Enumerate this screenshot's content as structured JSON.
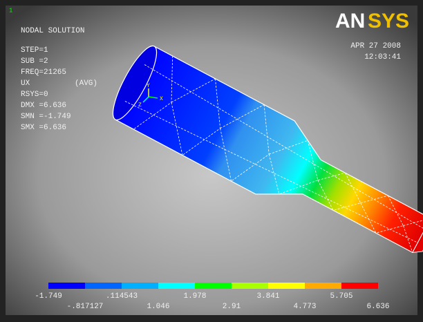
{
  "window_number": "1",
  "header": {
    "title": "NODAL SOLUTION",
    "lines": [
      "STEP=1",
      "SUB =2",
      "FREQ=21265"
    ],
    "result": {
      "label": "UX",
      "option": "(AVG)"
    },
    "lines2": [
      "RSYS=0",
      "DMX =6.636",
      "SMN =-1.749",
      "SMX =6.636"
    ]
  },
  "logo": {
    "an": "AN",
    "sys": "SYS"
  },
  "date": "APR 27 2008",
  "time": "12:03:41",
  "triad": [
    "Y",
    "X",
    "Z"
  ],
  "legend": {
    "colors": [
      "#0000ff",
      "#0066ff",
      "#00b0ff",
      "#00ffff",
      "#00ff00",
      "#aaff00",
      "#ffff00",
      "#ffaa00",
      "#ff0000"
    ],
    "upper_labels": [
      "-1.749",
      ".114543",
      "1.978",
      "3.841",
      "5.705"
    ],
    "lower_labels": [
      "-.817127",
      "1.046",
      "2.91",
      "4.773",
      "6.636"
    ]
  }
}
